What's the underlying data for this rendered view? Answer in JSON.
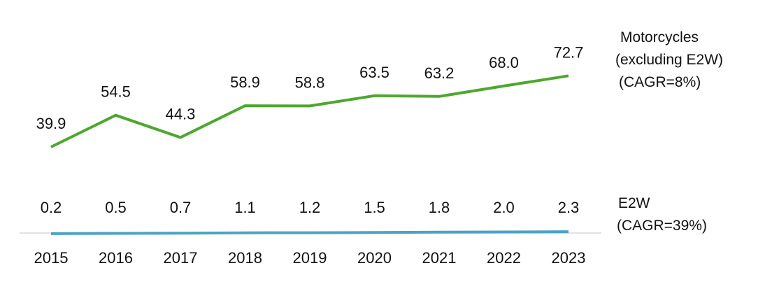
{
  "chart_data": {
    "type": "line",
    "categories": [
      "2015",
      "2016",
      "2017",
      "2018",
      "2019",
      "2020",
      "2021",
      "2022",
      "2023"
    ],
    "series": [
      {
        "name": "Motorcycles (excluding E2W) (CAGR=8%)",
        "legend_lines": [
          "Motorcycles",
          "(excluding E2W)",
          "(CAGR=8%)"
        ],
        "values": [
          39.9,
          54.5,
          44.3,
          58.9,
          58.8,
          63.5,
          63.2,
          68.0,
          72.7
        ],
        "labels": [
          "39.9",
          "54.5",
          "44.3",
          "58.9",
          "58.8",
          "63.5",
          "63.2",
          "68.0",
          "72.7"
        ],
        "color": "#4ea72e"
      },
      {
        "name": "E2W (CAGR=39%)",
        "legend_lines": [
          "E2W",
          "(CAGR=39%)"
        ],
        "values": [
          0.2,
          0.5,
          0.7,
          1.1,
          1.2,
          1.5,
          1.8,
          2.0,
          2.3
        ],
        "labels": [
          "0.2",
          "0.5",
          "0.7",
          "1.1",
          "1.2",
          "1.5",
          "1.8",
          "2.0",
          "2.3"
        ],
        "color": "#4ba3c3"
      }
    ],
    "axis_color": "#d9d9d9",
    "grid": false,
    "legend_position": "right",
    "data_labels": true
  }
}
